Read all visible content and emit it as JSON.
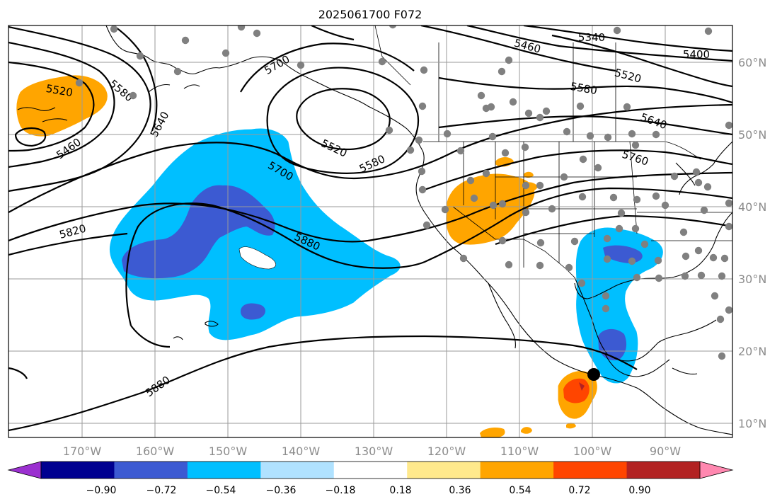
{
  "title": "2025061700 F072",
  "lon_labels": [
    "170°W",
    "160°W",
    "150°W",
    "140°W",
    "130°W",
    "120°W",
    "110°W",
    "100°W",
    "90°W"
  ],
  "lat_labels": [
    "60°N",
    "50°N",
    "40°N",
    "30°N",
    "20°N",
    "10°N"
  ],
  "colorbar": {
    "ticks": [
      "−0.90",
      "−0.72",
      "−0.54",
      "−0.36",
      "−0.18",
      "0.18",
      "0.36",
      "0.54",
      "0.72",
      "0.90"
    ],
    "colors": [
      "#9b30d0",
      "#000090",
      "#3c5ad2",
      "#00bfff",
      "#b0e2ff",
      "#ffffff",
      "#ffe98c",
      "#ffa500",
      "#ff4500",
      "#b22222",
      "#ff88b0"
    ]
  },
  "contour_labels": [
    "5520",
    "5580",
    "5640",
    "5460",
    "5700",
    "5520",
    "5580",
    "5700",
    "5820",
    "5880",
    "5340",
    "5400",
    "5460",
    "5520",
    "5580",
    "5640",
    "5760",
    "5880"
  ],
  "colors": {
    "negative_fill": "#00bfff",
    "negative_core": "#3c5ad2",
    "positive_fill": "#ffa500",
    "positive_core": "#ff4500",
    "stations": "#808080",
    "marker": "#000000"
  }
}
